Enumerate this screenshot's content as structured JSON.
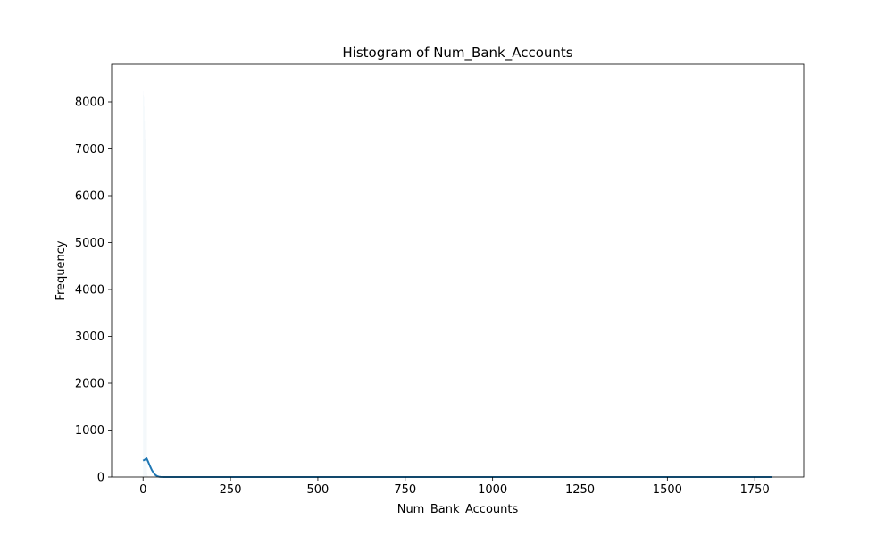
{
  "chart_data": {
    "type": "bar",
    "title": "Histogram of Num_Bank_Accounts",
    "xlabel": "Num_Bank_Accounts",
    "ylabel": "Frequency",
    "xlim": [
      -90,
      1890
    ],
    "ylim": [
      0,
      8800
    ],
    "xticks": [
      0,
      250,
      500,
      750,
      1000,
      1250,
      1500,
      1750
    ],
    "yticks": [
      0,
      1000,
      2000,
      3000,
      4000,
      5000,
      6000,
      7000,
      8000
    ],
    "grid": false,
    "bins": [
      {
        "x0": 0,
        "x1": 1,
        "count": 8150
      },
      {
        "x0": 1,
        "x1": 2,
        "count": 8230
      },
      {
        "x0": 2,
        "x1": 3,
        "count": 8100
      },
      {
        "x0": 3,
        "x1": 4,
        "count": 7900
      },
      {
        "x0": 4,
        "x1": 5,
        "count": 7600
      },
      {
        "x0": 5,
        "x1": 6,
        "count": 7400
      },
      {
        "x0": 6,
        "x1": 7,
        "count": 7200
      },
      {
        "x0": 7,
        "x1": 8,
        "count": 6800
      },
      {
        "x0": 8,
        "x1": 9,
        "count": 6500
      },
      {
        "x0": 9,
        "x1": 10,
        "count": 6100
      },
      {
        "x0": 10,
        "x1": 11,
        "count": 5900
      },
      {
        "x0": 11,
        "x1": 12,
        "count": 80
      },
      {
        "x0": 12,
        "x1": 13,
        "count": 40
      },
      {
        "x0": 13,
        "x1": 14,
        "count": 20
      }
    ],
    "kde": {
      "x": [
        0,
        5,
        10,
        15,
        20,
        25,
        30,
        35,
        40,
        45,
        50,
        60,
        80,
        100,
        200,
        400,
        800,
        1200,
        1600,
        1798
      ],
      "y": [
        350,
        370,
        400,
        320,
        230,
        150,
        90,
        45,
        20,
        8,
        3,
        1,
        0,
        0,
        0,
        0,
        0,
        0,
        0,
        0
      ]
    },
    "colors": {
      "bar_fill": "#1f77b4",
      "kde_line": "#1f77b4"
    }
  }
}
